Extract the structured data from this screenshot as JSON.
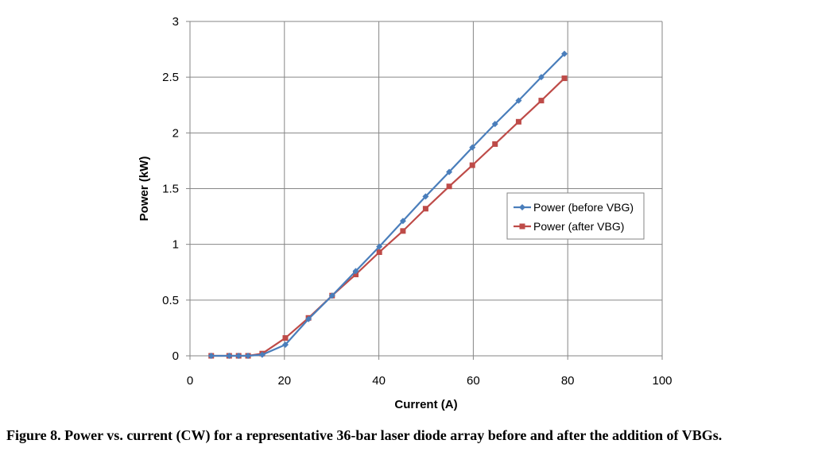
{
  "chart_data": {
    "type": "line",
    "title": "",
    "xlabel": "Current (A)",
    "ylabel": "Power (kW)",
    "xlim": [
      0,
      100
    ],
    "ylim": [
      0,
      3
    ],
    "xticks": [
      0,
      20,
      40,
      60,
      80,
      100
    ],
    "yticks": [
      0,
      0.5,
      1,
      1.5,
      2,
      2.5,
      3
    ],
    "xtick_labels": [
      "0",
      "20",
      "40",
      "60",
      "80",
      "100"
    ],
    "ytick_labels": [
      "0",
      "0.5",
      "1",
      "1.5",
      "2",
      "2.5",
      "3"
    ],
    "grid": true,
    "legend_position": "right",
    "series": [
      {
        "name": "Power (before VBG)",
        "color": "#4a7ebb",
        "marker": "diamond",
        "x": [
          4.5,
          8.3,
          10.3,
          12.3,
          15.3,
          20.2,
          25.1,
          30.1,
          35.1,
          40.1,
          45.1,
          49.9,
          54.9,
          59.8,
          64.6,
          69.6,
          74.4,
          79.3
        ],
        "y": [
          0,
          0,
          0,
          0,
          0.01,
          0.1,
          0.33,
          0.54,
          0.76,
          0.98,
          1.21,
          1.43,
          1.65,
          1.87,
          2.08,
          2.29,
          2.5,
          2.71
        ]
      },
      {
        "name": "Power (after VBG)",
        "color": "#be4b48",
        "marker": "square",
        "x": [
          4.5,
          8.3,
          10.3,
          12.3,
          15.3,
          20.2,
          25.1,
          30.1,
          35.1,
          40.1,
          45.1,
          49.9,
          54.9,
          59.8,
          64.6,
          69.6,
          74.4,
          79.3
        ],
        "y": [
          0,
          0,
          0,
          0,
          0.02,
          0.16,
          0.34,
          0.54,
          0.73,
          0.93,
          1.12,
          1.32,
          1.52,
          1.71,
          1.9,
          2.1,
          2.29,
          2.49
        ]
      }
    ]
  },
  "caption": "Figure 8.  Power vs. current (CW) for a representative 36-bar laser diode array before and after the addition of VBGs."
}
